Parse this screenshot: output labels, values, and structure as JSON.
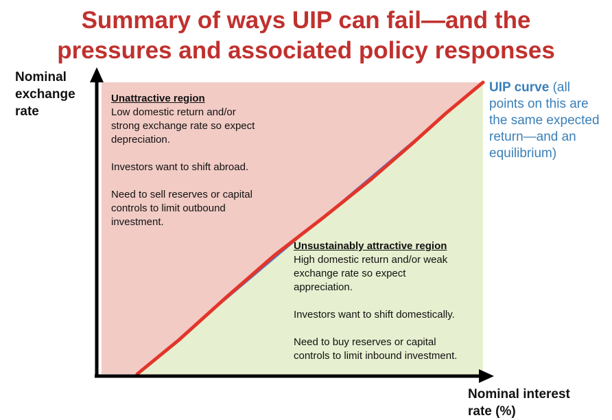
{
  "title": {
    "line1": "Summary of ways UIP can fail—and the",
    "line2": "pressures and associated policy responses"
  },
  "y_axis": {
    "line1": "Nominal",
    "line2": "exchange",
    "line3": "rate"
  },
  "x_axis": {
    "line1": "Nominal interest",
    "line2": "rate (%)"
  },
  "unattractive_region": {
    "title": "Unattractive region",
    "desc": [
      "Low domestic return and/or",
      "strong exchange rate so expect",
      "depreciation."
    ],
    "investors": "Investors want to shift abroad.",
    "policy": [
      "Need to sell reserves or capital",
      "controls to limit outbound",
      "investment."
    ]
  },
  "attractive_region": {
    "title": "Unsustainably attractive region",
    "desc": [
      "High domestic return and/or weak",
      "exchange rate so expect",
      "appreciation."
    ],
    "investors": "Investors want to shift domestically.",
    "policy": [
      "Need to buy reserves or capital",
      "controls to limit inbound investment."
    ]
  },
  "uip_curve": {
    "label_bold": "UIP curve",
    "label_rest": " (all points on this are the same expected return—and an equilibrium)"
  },
  "colors": {
    "title": "#c0312e",
    "upper_region": "#f2cbc5",
    "lower_region": "#e6efcf",
    "curve_red": "#e2352b",
    "curve_blue": "#5878c4",
    "label_blue": "#3a7fb8",
    "axis": "#000000"
  }
}
